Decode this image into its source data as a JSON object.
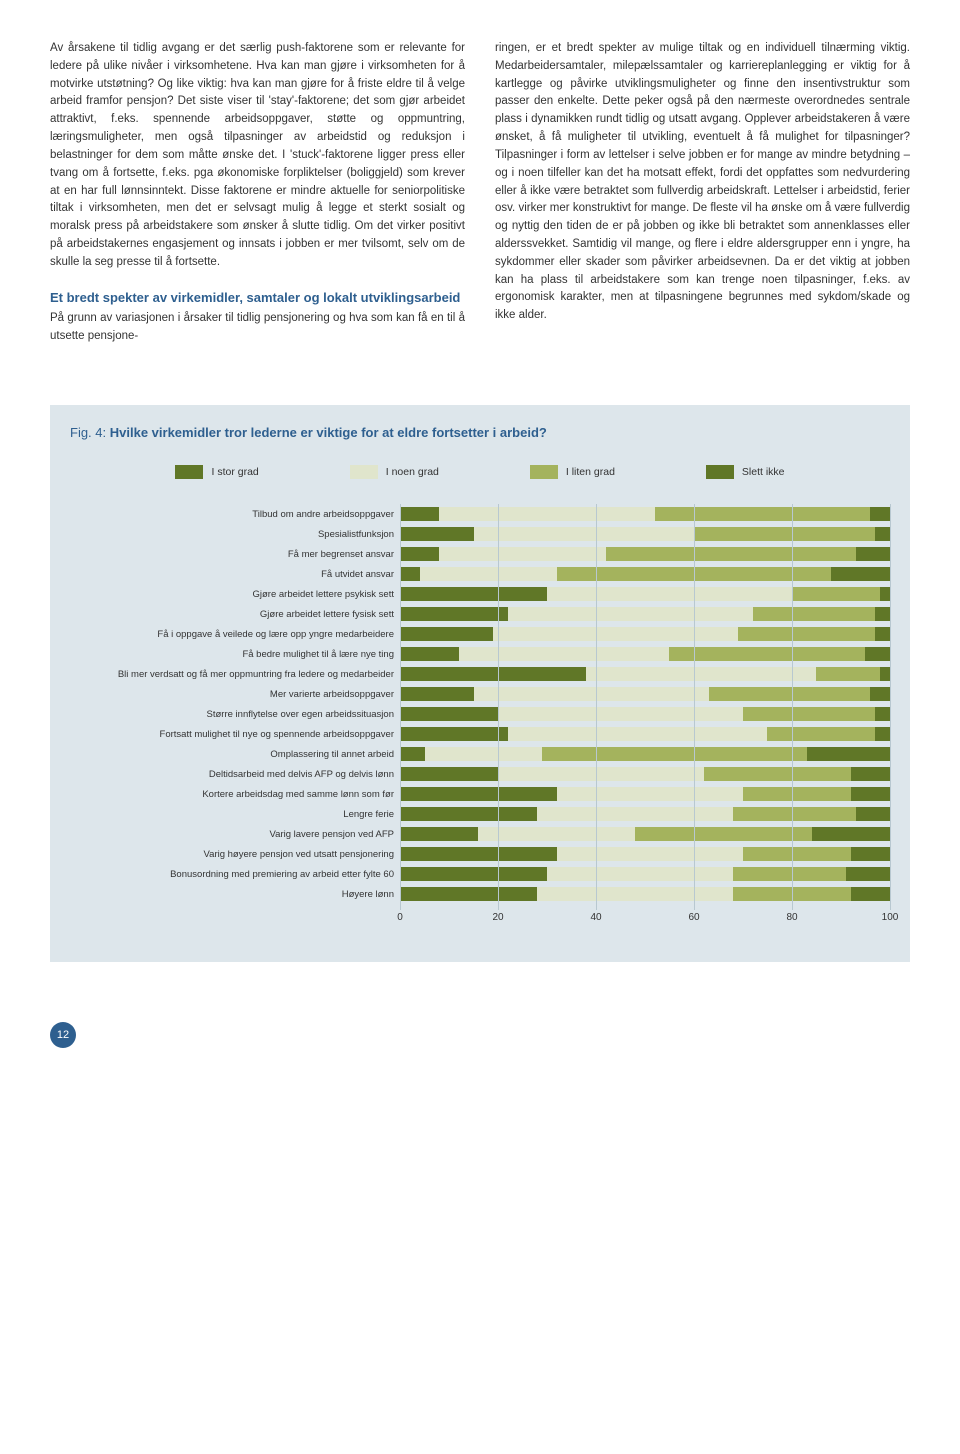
{
  "col1": {
    "p1": "Av årsakene til tidlig avgang er det særlig push-faktorene som er relevante for ledere på ulike nivåer i virksomhetene. Hva kan man gjøre i virksomheten for å motvirke utstøtning? Og like viktig: hva kan man gjøre for å friste eldre til å velge arbeid framfor pensjon? Det siste viser til 'stay'-faktorene; det som gjør arbeidet attraktivt, f.eks. spennende arbeidsoppgaver, støtte og oppmuntring, læringsmuligheter, men også tilpasninger av arbeidstid og reduksjon i belastninger for dem som måtte ønske det. I 'stuck'-faktorene ligger press eller tvang om å fortsette, f.eks. pga økonomiske forpliktelser (boliggjeld) som krever at en har full lønnsinntekt. Disse faktorene er mindre aktuelle for seniorpolitiske tiltak i virksomheten, men det er selvsagt mulig å legge et sterkt sosialt og moralsk press på arbeidstakere som ønsker å slutte tidlig. Om det virker positivt på arbeidstakernes engasjement og innsats i jobben er mer tvilsomt, selv om de skulle la seg presse til å fortsette.",
    "h2": "Et bredt spekter av virkemidler, samtaler og lokalt utviklingsarbeid",
    "p2": "På grunn av variasjonen i årsaker til tidlig pensjonering og hva som kan få en til å utsette pensjone-"
  },
  "col2": {
    "p1": "ringen, er et bredt spekter av mulige tiltak og en individuell tilnærming viktig. Medarbeidersamtaler, milepælssamtaler og karriereplanlegging er viktig for å kartlegge og påvirke utviklingsmuligheter og finne den insentivstruktur som passer den enkelte. Dette peker også på den nærmeste overordnedes sentrale plass i dynamikken rundt tidlig og utsatt avgang. Opplever arbeidstakeren å være ønsket, å få muligheter til utvikling, eventuelt å få mulighet for tilpasninger? Tilpasninger i form av lettelser i selve jobben er for mange av mindre betydning – og i noen tilfeller kan det ha motsatt effekt, fordi det oppfattes som nedvurdering eller å ikke være betraktet som fullverdig arbeidskraft. Lettelser i arbeidstid, ferier osv. virker mer konstruktivt for mange. De fleste vil ha ønske om å være fullverdig og nyttig den tiden de er på jobben og ikke bli betraktet som annenklasses eller alderssvekket. Samtidig vil mange, og flere i eldre aldersgrupper enn i yngre, ha sykdommer eller skader som påvirker arbeidsevnen. Da er det viktig at jobben kan ha plass til arbeidstakere som kan trenge noen tilpasninger, f.eks. av ergonomisk karakter, men at tilpasningene begrunnes med sykdom/skade og ikke alder."
  },
  "chart": {
    "title_prefix": "Fig. 4: ",
    "title_bold": "Hvilke virkemidler tror lederne er viktige for at eldre fortsetter i arbeid?",
    "legend": [
      "I stor grad",
      "I noen grad",
      "I liten grad",
      "Slett ikke"
    ],
    "colors": [
      "#607727",
      "#e0e5cc",
      "#a4b35d",
      "#607727"
    ],
    "background": "#dde6eb",
    "xticks": [
      0,
      20,
      40,
      60,
      80,
      100
    ],
    "categories": [
      "Tilbud om andre arbeidsoppgaver",
      "Spesialistfunksjon",
      "Få mer begrenset ansvar",
      "Få utvidet ansvar",
      "Gjøre arbeidet lettere psykisk sett",
      "Gjøre arbeidet lettere fysisk sett",
      "Få i oppgave å veilede og lære opp yngre medarbeidere",
      "Få bedre mulighet til å lære nye ting",
      "Bli mer verdsatt og få mer oppmuntring fra ledere og medarbeider",
      "Mer varierte arbeidsoppgaver",
      "Større innflytelse over egen arbeidssituasjon",
      "Fortsatt mulighet til nye og spennende arbeidsoppgaver",
      "Omplassering til annet arbeid",
      "Deltidsarbeid med delvis AFP og delvis lønn",
      "Kortere arbeidsdag med samme lønn som før",
      "Lengre ferie",
      "Varig lavere pensjon ved AFP",
      "Varig høyere pensjon ved utsatt pensjonering",
      "Bonusordning med premiering av arbeid etter fylte 60",
      "Høyere lønn"
    ],
    "values": [
      [
        8,
        44,
        44,
        4
      ],
      [
        15,
        45,
        37,
        3
      ],
      [
        8,
        34,
        51,
        7
      ],
      [
        4,
        28,
        56,
        12
      ],
      [
        30,
        50,
        18,
        2
      ],
      [
        22,
        50,
        25,
        3
      ],
      [
        19,
        50,
        28,
        3
      ],
      [
        12,
        43,
        40,
        5
      ],
      [
        38,
        47,
        13,
        2
      ],
      [
        15,
        48,
        33,
        4
      ],
      [
        20,
        50,
        27,
        3
      ],
      [
        22,
        53,
        22,
        3
      ],
      [
        5,
        24,
        54,
        17
      ],
      [
        20,
        42,
        30,
        8
      ],
      [
        32,
        38,
        22,
        8
      ],
      [
        28,
        40,
        25,
        7
      ],
      [
        16,
        32,
        36,
        16
      ],
      [
        32,
        38,
        22,
        8
      ],
      [
        30,
        38,
        23,
        9
      ],
      [
        28,
        40,
        24,
        8
      ]
    ]
  },
  "page_number": "12"
}
